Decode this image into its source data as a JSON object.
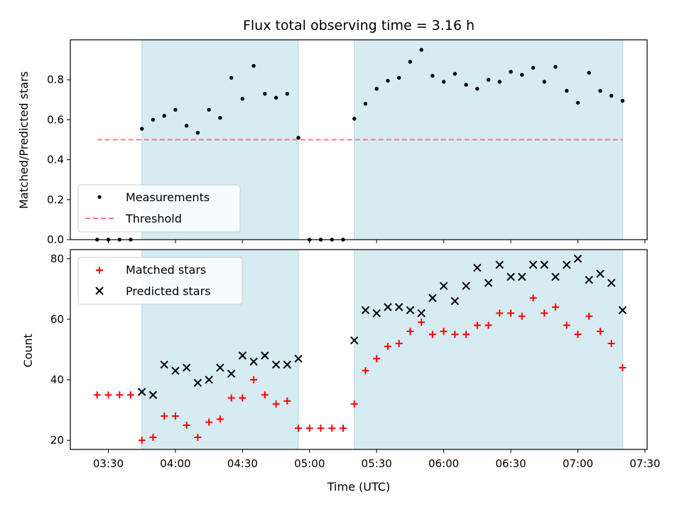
{
  "chart_data": [
    {
      "type": "scatter",
      "title": "Flux total observing time = 3.16 h",
      "ylabel": "Matched/Predicted stars",
      "xlim": [
        "03:13",
        "07:31"
      ],
      "ylim": [
        0,
        1.0
      ],
      "yticks": [
        0.0,
        0.2,
        0.4,
        0.6,
        0.8
      ],
      "ytick_labels": [
        "0.0",
        "0.2",
        "0.4",
        "0.6",
        "0.8"
      ],
      "shaded_intervals": [
        [
          "03:45",
          "04:55"
        ],
        [
          "05:20",
          "07:20"
        ]
      ],
      "shade_color": "#add8e6",
      "threshold": {
        "name": "Threshold",
        "y": 0.5,
        "x_range": [
          "03:25",
          "07:20"
        ],
        "color": "#f08080",
        "style": "dashed"
      },
      "series": [
        {
          "name": "Measurements",
          "marker": "dot",
          "color": "#000000",
          "x": [
            "03:25",
            "03:30",
            "03:35",
            "03:40",
            "03:45",
            "03:50",
            "03:55",
            "04:00",
            "04:05",
            "04:10",
            "04:15",
            "04:20",
            "04:25",
            "04:30",
            "04:35",
            "04:40",
            "04:45",
            "04:50",
            "04:55",
            "05:00",
            "05:05",
            "05:10",
            "05:15",
            "05:20",
            "05:25",
            "05:30",
            "05:35",
            "05:40",
            "05:45",
            "05:50",
            "05:55",
            "06:00",
            "06:05",
            "06:10",
            "06:15",
            "06:20",
            "06:25",
            "06:30",
            "06:35",
            "06:40",
            "06:45",
            "06:50",
            "06:55",
            "07:00",
            "07:05",
            "07:10",
            "07:15",
            "07:20"
          ],
          "y": [
            0,
            0,
            0,
            0,
            0.555,
            0.6,
            0.62,
            0.65,
            0.57,
            0.535,
            0.65,
            0.61,
            0.81,
            0.705,
            0.87,
            0.73,
            0.71,
            0.73,
            0.51,
            0,
            0,
            0,
            0,
            0.605,
            0.68,
            0.755,
            0.795,
            0.81,
            0.89,
            0.95,
            0.82,
            0.79,
            0.83,
            0.775,
            0.755,
            0.8,
            0.79,
            0.84,
            0.825,
            0.86,
            0.79,
            0.865,
            0.745,
            0.685,
            0.835,
            0.745,
            0.72,
            0.695
          ]
        }
      ],
      "legend": {
        "placement": "lower-left"
      }
    },
    {
      "type": "scatter",
      "xlabel": "Time (UTC)",
      "ylabel": "Count",
      "xlim": [
        "03:13",
        "07:31"
      ],
      "ylim": [
        17,
        83
      ],
      "yticks": [
        20,
        40,
        60,
        80
      ],
      "xticks": [
        "03:30",
        "04:00",
        "04:30",
        "05:00",
        "05:30",
        "06:00",
        "06:30",
        "07:00",
        "07:30"
      ],
      "shaded_intervals": [
        [
          "03:45",
          "04:55"
        ],
        [
          "05:20",
          "07:20"
        ]
      ],
      "shade_color": "#add8e6",
      "series": [
        {
          "name": "Matched stars",
          "marker": "plus",
          "color": "#ff0000",
          "x": [
            "03:25",
            "03:30",
            "03:35",
            "03:40",
            "03:45",
            "03:50",
            "03:55",
            "04:00",
            "04:05",
            "04:10",
            "04:15",
            "04:20",
            "04:25",
            "04:30",
            "04:35",
            "04:40",
            "04:45",
            "04:50",
            "04:55",
            "05:00",
            "05:05",
            "05:10",
            "05:15",
            "05:20",
            "05:25",
            "05:30",
            "05:35",
            "05:40",
            "05:45",
            "05:50",
            "05:55",
            "06:00",
            "06:05",
            "06:10",
            "06:15",
            "06:20",
            "06:25",
            "06:30",
            "06:35",
            "06:40",
            "06:45",
            "06:50",
            "06:55",
            "07:00",
            "07:05",
            "07:10",
            "07:15",
            "07:20"
          ],
          "y": [
            35,
            35,
            35,
            35,
            20,
            21,
            28,
            28,
            25,
            21,
            26,
            27,
            34,
            34,
            40,
            35,
            32,
            33,
            24,
            24,
            24,
            24,
            24,
            32,
            43,
            47,
            51,
            52,
            56,
            59,
            55,
            56,
            55,
            55,
            58,
            58,
            62,
            62,
            61,
            67,
            62,
            64,
            58,
            55,
            61,
            56,
            52,
            44
          ]
        },
        {
          "name": "Predicted stars",
          "marker": "x",
          "color": "#000000",
          "x": [
            "03:45",
            "03:50",
            "03:55",
            "04:00",
            "04:05",
            "04:10",
            "04:15",
            "04:20",
            "04:25",
            "04:30",
            "04:35",
            "04:40",
            "04:45",
            "04:50",
            "04:55",
            "05:20",
            "05:25",
            "05:30",
            "05:35",
            "05:40",
            "05:45",
            "05:50",
            "05:55",
            "06:00",
            "06:05",
            "06:10",
            "06:15",
            "06:20",
            "06:25",
            "06:30",
            "06:35",
            "06:40",
            "06:45",
            "06:50",
            "06:55",
            "07:00",
            "07:05",
            "07:10",
            "07:15",
            "07:20"
          ],
          "y": [
            36,
            35,
            45,
            43,
            44,
            39,
            40,
            44,
            42,
            48,
            46,
            48,
            45,
            45,
            47,
            53,
            63,
            62,
            64,
            64,
            63,
            62,
            67,
            71,
            66,
            71,
            77,
            72,
            78,
            74,
            74,
            78,
            78,
            74,
            78,
            80,
            73,
            75,
            72,
            63
          ]
        }
      ],
      "legend": {
        "placement": "upper-left"
      }
    }
  ]
}
